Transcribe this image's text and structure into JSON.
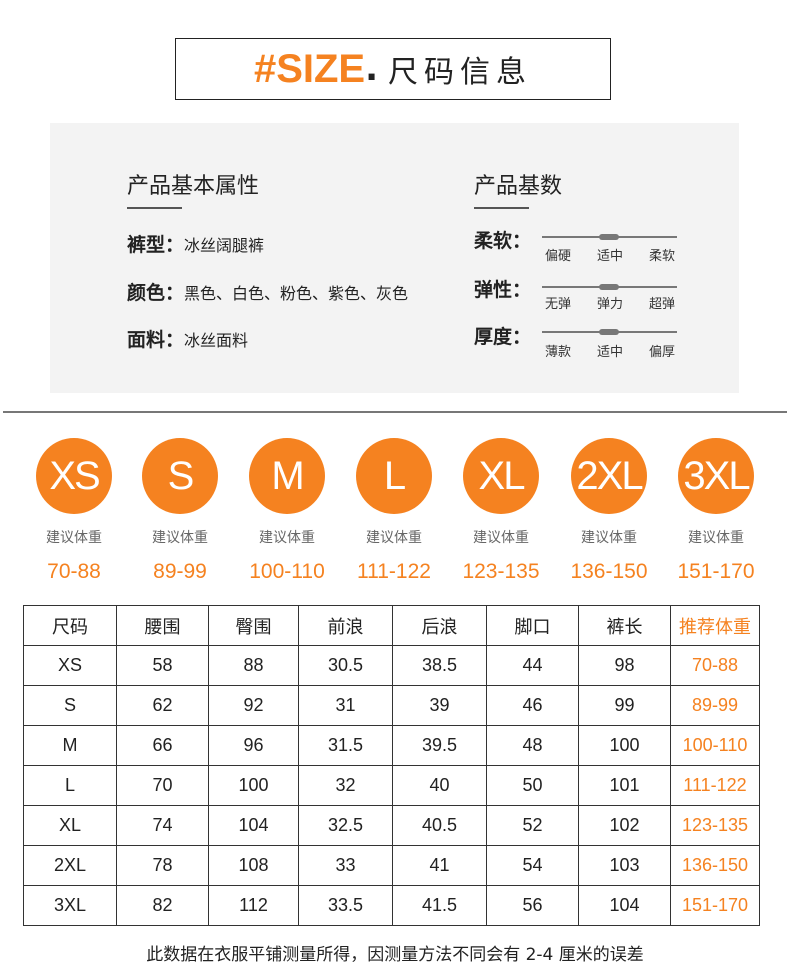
{
  "title": {
    "hash": "#",
    "en": "SIZE",
    "dot": ".",
    "cn": "尺码信息"
  },
  "basic": {
    "heading": "产品基本属性",
    "items": [
      {
        "label": "裤型：",
        "value": "冰丝阔腿裤"
      },
      {
        "label": "颜色：",
        "value": "黑色、白色、粉色、紫色、灰色"
      },
      {
        "label": "面料：",
        "value": "冰丝面料"
      }
    ]
  },
  "params": {
    "heading": "产品基数",
    "items": [
      {
        "label": "柔软：",
        "ticks": [
          "偏硬",
          "适中",
          "柔软"
        ],
        "selected": "适中"
      },
      {
        "label": "弹性：",
        "ticks": [
          "无弹",
          "弹力",
          "超弹"
        ],
        "selected": "弹力"
      },
      {
        "label": "厚度：",
        "ticks": [
          "薄款",
          "适中",
          "偏厚"
        ],
        "selected": "适中"
      }
    ]
  },
  "sizes": [
    {
      "size": "XS",
      "label": "建议体重",
      "weight": "70-88"
    },
    {
      "size": "S",
      "label": "建议体重",
      "weight": "89-99"
    },
    {
      "size": "M",
      "label": "建议体重",
      "weight": "100-110"
    },
    {
      "size": "L",
      "label": "建议体重",
      "weight": "111-122"
    },
    {
      "size": "XL",
      "label": "建议体重",
      "weight": "123-135"
    },
    {
      "size": "2XL",
      "label": "建议体重",
      "weight": "136-150"
    },
    {
      "size": "3XL",
      "label": "建议体重",
      "weight": "151-170"
    }
  ],
  "table": {
    "headers": [
      "尺码",
      "腰围",
      "臀围",
      "前浪",
      "后浪",
      "脚口",
      "裤长",
      "推荐体重"
    ],
    "rows": [
      [
        "XS",
        "58",
        "88",
        "30.5",
        "38.5",
        "44",
        "98",
        "70-88"
      ],
      [
        "S",
        "62",
        "92",
        "31",
        "39",
        "46",
        "99",
        "89-99"
      ],
      [
        "M",
        "66",
        "96",
        "31.5",
        "39.5",
        "48",
        "100",
        "100-110"
      ],
      [
        "L",
        "70",
        "100",
        "32",
        "40",
        "50",
        "101",
        "111-122"
      ],
      [
        "XL",
        "74",
        "104",
        "32.5",
        "40.5",
        "52",
        "102",
        "123-135"
      ],
      [
        "2XL",
        "78",
        "108",
        "33",
        "41",
        "54",
        "103",
        "136-150"
      ],
      [
        "3XL",
        "82",
        "112",
        "33.5",
        "41.5",
        "56",
        "104",
        "151-170"
      ]
    ]
  },
  "note": "此数据在衣服平铺测量所得，因测量方法不同会有 2-4 厘米的误差",
  "colors": {
    "accent": "#f58220"
  }
}
